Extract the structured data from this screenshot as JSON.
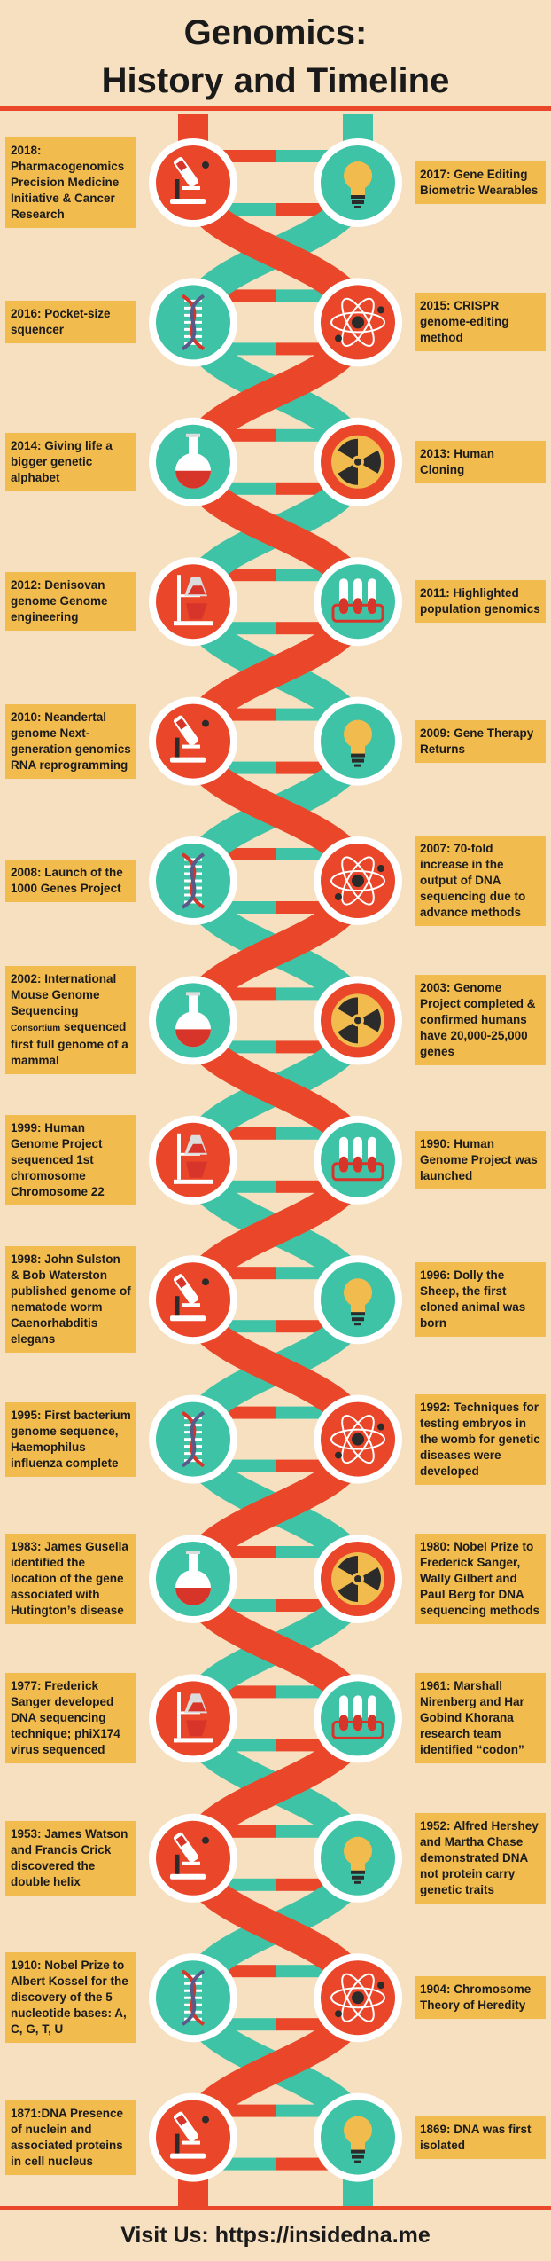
{
  "title_line1": "Genomics:",
  "title_line2": "History and Timeline",
  "footer": "Visit Us: https://insidedna.me",
  "colors": {
    "background": "#f7e0c0",
    "orange_strand": "#e9462a",
    "teal_strand": "#3fc3a6",
    "label_box": "#f2bb4d",
    "red_circle": "#e9462a",
    "teal_circle": "#3fc3a6"
  },
  "rows": [
    {
      "left": {
        "text": "2018: Pharmacogenomics Precision Medicine Initiative & Cancer Research",
        "icon": "microscope-icon",
        "color": "red"
      },
      "right": {
        "text": "2017: Gene Editing Biometric Wearables",
        "icon": "lightbulb-icon",
        "color": "teal"
      }
    },
    {
      "left": {
        "text": "2016: Pocket-size squencer",
        "icon": "dna-icon",
        "color": "teal"
      },
      "right": {
        "text": "2015: CRISPR genome-editing method",
        "icon": "atom-icon",
        "color": "red"
      }
    },
    {
      "left": {
        "text": "2014: Giving life a bigger genetic alphabet",
        "icon": "flask-icon",
        "color": "teal"
      },
      "right": {
        "text": "2013: Human Cloning",
        "icon": "radiation-icon",
        "color": "red"
      }
    },
    {
      "left": {
        "text": "2012: Denisovan genome Genome engineering",
        "icon": "beaker-stand-icon",
        "color": "red"
      },
      "right": {
        "text": "2011: Highlighted population genomics",
        "icon": "test-tubes-icon",
        "color": "teal"
      }
    },
    {
      "left": {
        "text": "2010: Neandertal genome Next-generation genomics RNA reprogramming",
        "icon": "microscope-icon",
        "color": "red"
      },
      "right": {
        "text": "2009: Gene Therapy Returns",
        "icon": "lightbulb-icon",
        "color": "teal"
      }
    },
    {
      "left": {
        "text": "2008: Launch of the 1000 Genes Project",
        "icon": "dna-icon",
        "color": "teal"
      },
      "right": {
        "text": "2007: 70-fold increase in the output of DNA sequencing due to advance methods",
        "icon": "atom-icon",
        "color": "red"
      }
    },
    {
      "left": {
        "text": "2002: International Mouse Genome Sequencing",
        "small": "Consortium",
        "text2": "sequenced first full genome of a mammal",
        "icon": "flask-icon",
        "color": "teal"
      },
      "right": {
        "text": "2003: Genome Project completed & confirmed humans have 20,000-25,000 genes",
        "icon": "radiation-icon",
        "color": "red"
      }
    },
    {
      "left": {
        "text": "1999: Human Genome Project sequenced 1st chromosome Chromosome 22",
        "icon": "beaker-stand-icon",
        "color": "red"
      },
      "right": {
        "text": "1990: Human Genome Project was launched",
        "icon": "test-tubes-icon",
        "color": "teal"
      }
    },
    {
      "left": {
        "text": "1998: John Sulston & Bob Waterston published genome of nematode worm Caenorhabditis elegans",
        "icon": "microscope-icon",
        "color": "red"
      },
      "right": {
        "text": "1996: Dolly the Sheep, the first cloned animal was born",
        "icon": "lightbulb-icon",
        "color": "teal"
      }
    },
    {
      "left": {
        "text": "1995: First bacterium genome sequence, Haemophilus influenza complete",
        "icon": "dna-icon",
        "color": "teal"
      },
      "right": {
        "text": "1992: Techniques for testing embryos in the womb for genetic diseases were developed",
        "icon": "atom-icon",
        "color": "red"
      }
    },
    {
      "left": {
        "text": "1983: James Gusella identified the location of the gene associated with Hutington’s disease",
        "icon": "flask-icon",
        "color": "teal"
      },
      "right": {
        "text": "1980: Nobel Prize  to Frederick Sanger, Wally Gilbert and Paul Berg for DNA sequencing methods",
        "icon": "radiation-icon",
        "color": "red"
      }
    },
    {
      "left": {
        "text": "1977: Frederick Sanger developed DNA sequencing technique; phiX174 virus sequenced",
        "icon": "beaker-stand-icon",
        "color": "red"
      },
      "right": {
        "text": "1961: Marshall Nirenberg and Har Gobind Khorana research team identified “codon”",
        "icon": "test-tubes-icon",
        "color": "teal"
      }
    },
    {
      "left": {
        "text": "1953: James Watson and Francis Crick discovered the double helix",
        "icon": "microscope-icon",
        "color": "red"
      },
      "right": {
        "text": "1952: Alfred Hershey and Martha Chase demonstrated  DNA not protein carry genetic traits",
        "icon": "lightbulb-icon",
        "color": "teal"
      }
    },
    {
      "left": {
        "text": "1910: Nobel Prize to Albert Kossel for the discovery of the 5 nucleotide bases: A, C, G, T, U",
        "icon": "dna-icon",
        "color": "teal"
      },
      "right": {
        "text": "1904: Chromosome Theory of Heredity",
        "icon": "atom-icon",
        "color": "red"
      }
    },
    {
      "left": {
        "text": "1871:DNA Presence of nuclein and associated proteins in cell nucleus",
        "icon": "microscope-icon",
        "color": "red"
      },
      "right": {
        "text": "1869: DNA was first isolated",
        "icon": "lightbulb-icon",
        "color": "teal"
      }
    }
  ]
}
